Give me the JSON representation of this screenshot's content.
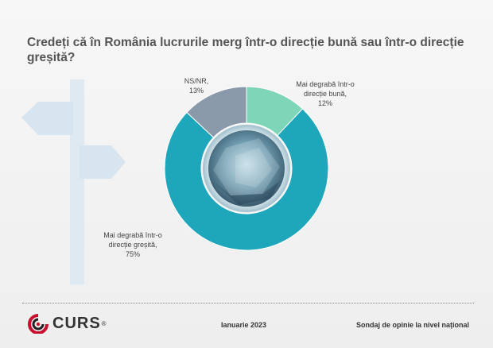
{
  "title": "Credeți că în România lucrurile merg într-o direcție bună sau într-o direcție greșită?",
  "chart_data": {
    "type": "pie",
    "variant": "donut",
    "start_angle_deg": 0,
    "direction": "clockwise",
    "slices": [
      {
        "label_lines": [
          "Mai degrabă într-o",
          "direcție bună,"
        ],
        "pct_label": "12%",
        "value": 12,
        "color": "#7fd5b8"
      },
      {
        "label_lines": [
          "Mai degrabă într-o",
          "direcție greșită,"
        ],
        "pct_label": "75%",
        "value": 75,
        "color": "#1ea6bb"
      },
      {
        "label_lines": [
          "NS/NR,"
        ],
        "pct_label": "13%",
        "value": 13,
        "color": "#8a9aab"
      }
    ]
  },
  "footer": {
    "logo_text": "CURS",
    "logo_reg": "®",
    "date": "Ianuarie 2023",
    "source": "Sondaj de opinie la nivel național"
  }
}
